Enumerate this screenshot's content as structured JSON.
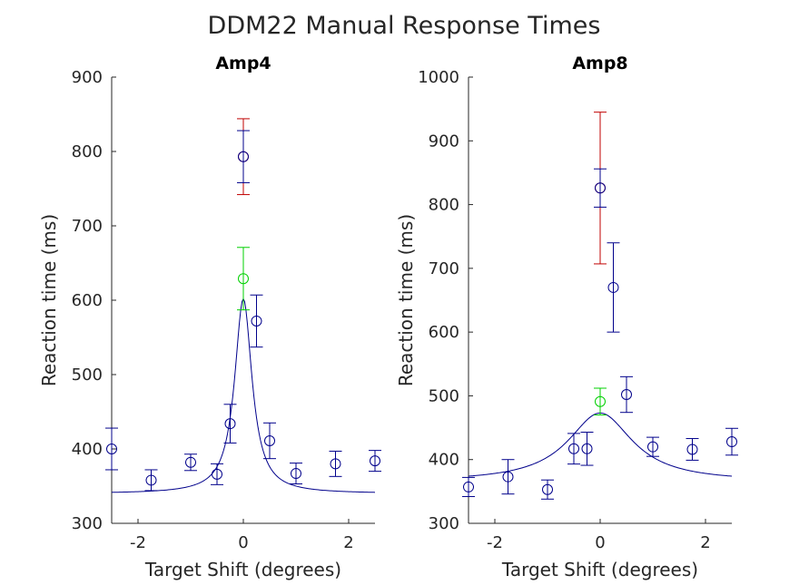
{
  "figure_title": "DDM22 Manual Response Times",
  "colors": {
    "blue": "#00008b",
    "red": "#c00000",
    "green": "#00d000",
    "axis": "#262626"
  },
  "chart_data": [
    {
      "type": "scatter",
      "title": "Amp4",
      "xlabel": "Target Shift (degrees)",
      "ylabel": "Reaction time (ms)",
      "xlim": [
        -2.5,
        2.5
      ],
      "ylim": [
        300,
        900
      ],
      "xticks": [
        -2,
        0,
        2
      ],
      "yticks": [
        300,
        400,
        500,
        600,
        700,
        800,
        900
      ],
      "grid": false,
      "series": [
        {
          "color": "blue",
          "points": [
            {
              "x": -2.5,
              "y": 400,
              "err": 28
            },
            {
              "x": -1.75,
              "y": 358,
              "err": 14
            },
            {
              "x": -1.0,
              "y": 382,
              "err": 11
            },
            {
              "x": -0.5,
              "y": 366,
              "err": 14
            },
            {
              "x": -0.25,
              "y": 434,
              "err": 26
            },
            {
              "x": 0.25,
              "y": 572,
              "err": 35
            },
            {
              "x": 0.5,
              "y": 411,
              "err": 24
            },
            {
              "x": 1.0,
              "y": 367,
              "err": 14
            },
            {
              "x": 1.75,
              "y": 380,
              "err": 17
            },
            {
              "x": 2.5,
              "y": 384,
              "err": 14
            }
          ]
        },
        {
          "color": "red",
          "points": [
            {
              "x": 0,
              "y": 793,
              "err": 51
            }
          ]
        },
        {
          "color": "blue",
          "points": [
            {
              "x": 0,
              "y": 793,
              "err": 35
            }
          ]
        },
        {
          "color": "green",
          "points": [
            {
              "x": 0,
              "y": 629,
              "err": 42
            }
          ]
        }
      ],
      "fit": {
        "color": "blue",
        "baseline": 340,
        "peak": 262,
        "width": 0.2
      }
    },
    {
      "type": "scatter",
      "title": "Amp8",
      "xlabel": "Target Shift (degrees)",
      "ylabel": "Reaction time (ms)",
      "xlim": [
        -2.5,
        2.5
      ],
      "ylim": [
        300,
        1000
      ],
      "xticks": [
        -2,
        0,
        2
      ],
      "yticks": [
        300,
        400,
        500,
        600,
        700,
        800,
        900,
        1000
      ],
      "grid": false,
      "series": [
        {
          "color": "blue",
          "points": [
            {
              "x": -2.5,
              "y": 357,
              "err": 15
            },
            {
              "x": -1.75,
              "y": 373,
              "err": 27
            },
            {
              "x": -1.0,
              "y": 353,
              "err": 15
            },
            {
              "x": -0.5,
              "y": 417,
              "err": 24
            },
            {
              "x": -0.25,
              "y": 417,
              "err": 26
            },
            {
              "x": 0.25,
              "y": 670,
              "err": 70
            },
            {
              "x": 0.5,
              "y": 502,
              "err": 28
            },
            {
              "x": 1.0,
              "y": 420,
              "err": 15
            },
            {
              "x": 1.75,
              "y": 416,
              "err": 17
            },
            {
              "x": 2.5,
              "y": 428,
              "err": 21
            }
          ]
        },
        {
          "color": "red",
          "points": [
            {
              "x": 0,
              "y": 826,
              "err": 119
            }
          ]
        },
        {
          "color": "blue",
          "points": [
            {
              "x": 0,
              "y": 826,
              "err": 30
            }
          ]
        },
        {
          "color": "green",
          "points": [
            {
              "x": 0,
              "y": 491,
              "err": 21
            }
          ]
        }
      ],
      "fit": {
        "color": "blue",
        "baseline": 365,
        "peak": 108,
        "width": 0.75
      }
    }
  ]
}
